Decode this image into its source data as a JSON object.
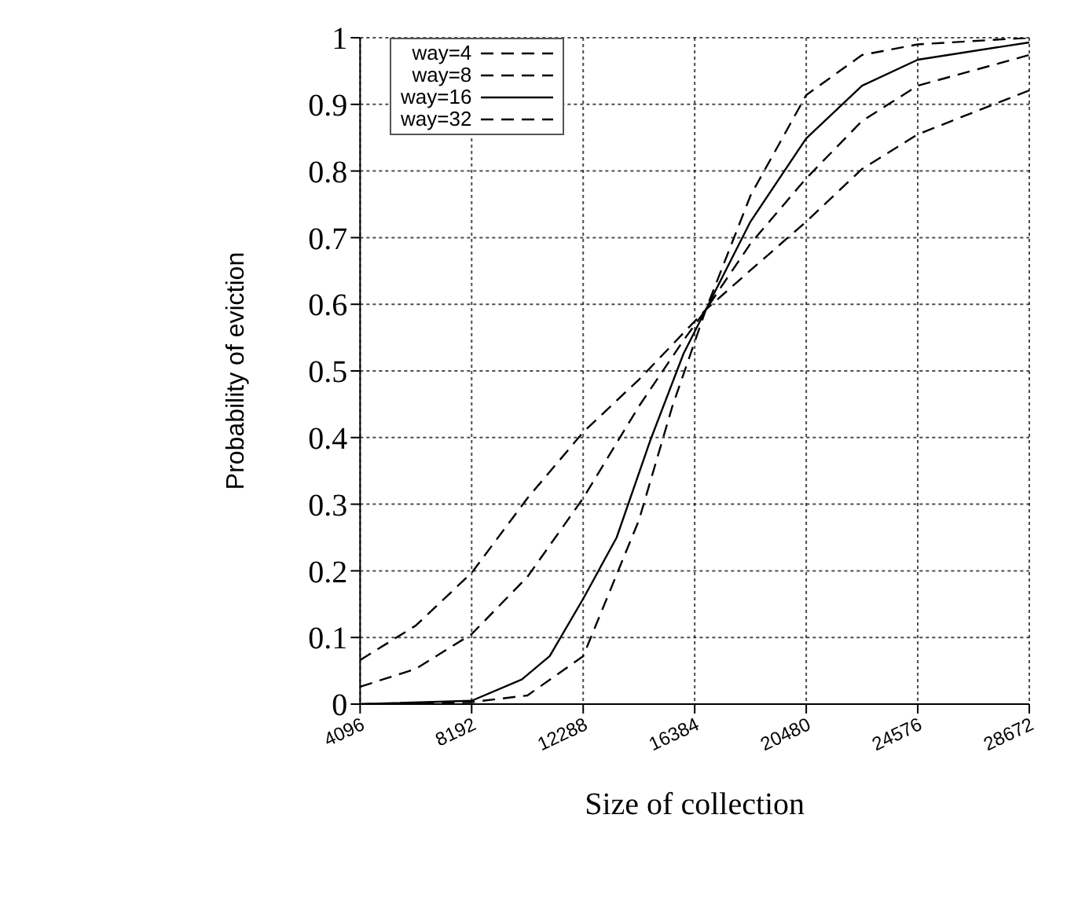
{
  "chart_data": {
    "type": "line",
    "xlabel": "Size of collection",
    "ylabel": "Probability of eviction",
    "xlim": [
      4096,
      28672
    ],
    "xticks": [
      4096,
      8192,
      12288,
      16384,
      20480,
      24576,
      28672
    ],
    "ylim": [
      0,
      1
    ],
    "yticks": [
      0,
      0.1,
      0.2,
      0.3,
      0.4,
      0.5,
      0.6,
      0.7,
      0.8,
      0.9,
      1
    ],
    "grid": true,
    "legend": "top left",
    "marker": "none",
    "series": [
      {
        "name": "way=4",
        "color": "#000000",
        "line_style": "dashed",
        "x": [
          4096,
          8192,
          10240,
          12288,
          14336,
          15565,
          16794,
          18432,
          20480,
          22528,
          24576,
          28672
        ],
        "values": [
          0,
          0.003,
          0.013,
          0.072,
          0.276,
          0.447,
          0.592,
          0.763,
          0.914,
          0.974,
          0.99,
          1.0
        ]
      },
      {
        "name": "way=8",
        "color": "#000000",
        "line_style": "dashed",
        "x": [
          4096,
          6144,
          8192,
          10240,
          12288,
          14336,
          15974,
          16794,
          18432,
          20480,
          22528,
          24576,
          28672
        ],
        "values": [
          0.026,
          0.053,
          0.105,
          0.191,
          0.309,
          0.447,
          0.546,
          0.592,
          0.691,
          0.789,
          0.875,
          0.928,
          0.974
        ]
      },
      {
        "name": "way=16",
        "color": "#000000",
        "line_style": "solid",
        "x": [
          4096,
          8192,
          10035,
          11059,
          12288,
          13517,
          14746,
          15974,
          16794,
          18432,
          20480,
          22528,
          24576,
          28672
        ],
        "values": [
          0,
          0.005,
          0.037,
          0.072,
          0.158,
          0.25,
          0.395,
          0.526,
          0.592,
          0.724,
          0.849,
          0.928,
          0.967,
          0.993
        ]
      },
      {
        "name": "way=32",
        "color": "#000000",
        "line_style": "dashed",
        "x": [
          4096,
          6144,
          8192,
          10240,
          12288,
          14336,
          16794,
          18432,
          20480,
          22528,
          24576,
          28672
        ],
        "values": [
          0.066,
          0.118,
          0.197,
          0.309,
          0.408,
          0.487,
          0.592,
          0.651,
          0.724,
          0.803,
          0.855,
          0.921
        ]
      }
    ]
  }
}
